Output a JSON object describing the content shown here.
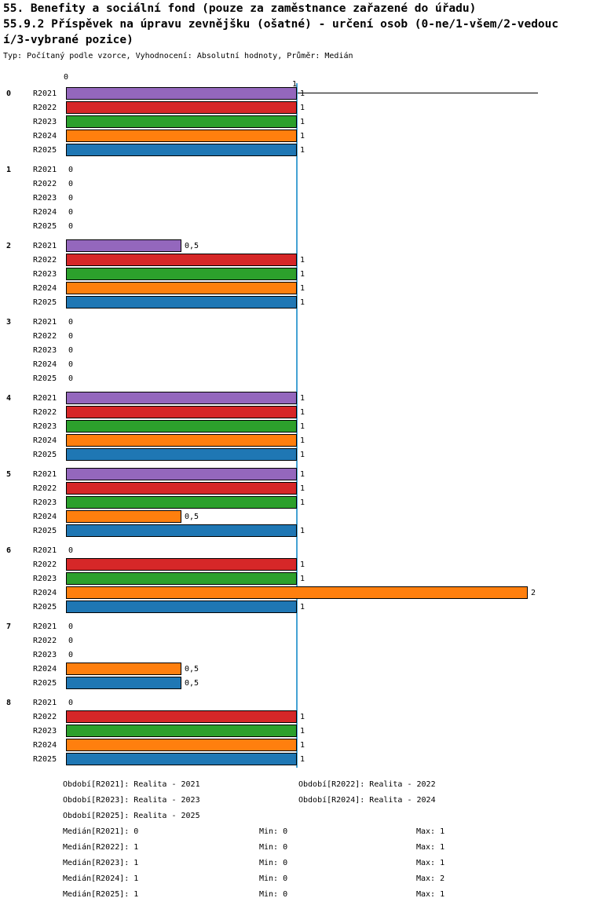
{
  "header": {
    "title_line1": "55. Benefity a sociální fond (pouze za zaměstnance zařazené do úřadu)",
    "title_line2": "55.9.2 Příspěvek na úpravu zevnějšku (ošatné) - určení osob (0-ne/1-všem/2-vedouc",
    "title_line3": "í/3-vybrané pozice)",
    "subtitle": "Typ: Počítaný podle vzorce, Vyhodnocení: Absolutní hodnoty, Průměr: Medián"
  },
  "chart_data": {
    "type": "bar",
    "orientation": "horizontal",
    "title": "55.9.2 Příspěvek na úpravu zevnějšku (ošatné) - určení osob (0-ne/1-všem/2-vedoucí/3-vybrané pozice)",
    "xlim": [
      0,
      2
    ],
    "median_line_value": 1,
    "axis_labels": {
      "origin": "0",
      "median": "1"
    },
    "series_labels": [
      "R2021",
      "R2022",
      "R2023",
      "R2024",
      "R2025"
    ],
    "colors": {
      "R2021": "#9467bd",
      "R2022": "#d62728",
      "R2023": "#2ca02c",
      "R2024": "#ff7f0e",
      "R2025": "#1f77b4",
      "median_line": "#44a2d4",
      "bar_border": "#000000"
    },
    "groups": [
      {
        "label": "0",
        "values": [
          1,
          1,
          1,
          1,
          1
        ]
      },
      {
        "label": "1",
        "values": [
          0,
          0,
          0,
          0,
          0
        ]
      },
      {
        "label": "2",
        "values": [
          0.5,
          1,
          1,
          1,
          1
        ]
      },
      {
        "label": "3",
        "values": [
          0,
          0,
          0,
          0,
          0
        ]
      },
      {
        "label": "4",
        "values": [
          1,
          1,
          1,
          1,
          1
        ]
      },
      {
        "label": "5",
        "values": [
          1,
          1,
          1,
          0.5,
          1
        ]
      },
      {
        "label": "6",
        "values": [
          0,
          1,
          1,
          2,
          1
        ]
      },
      {
        "label": "7",
        "values": [
          0,
          0,
          0,
          0.5,
          0.5
        ]
      },
      {
        "label": "8",
        "values": [
          0,
          1,
          1,
          1,
          1
        ]
      }
    ]
  },
  "footer": {
    "period_rows": [
      [
        "Období[R2021]: Realita - 2021",
        "Období[R2022]: Realita - 2022"
      ],
      [
        "Období[R2023]: Realita - 2023",
        "Období[R2024]: Realita - 2024"
      ],
      [
        "Období[R2025]: Realita - 2025",
        ""
      ]
    ],
    "stat_rows": [
      {
        "median": "Medián[R2021]: 0",
        "min": "Min: 0",
        "max": "Max: 1"
      },
      {
        "median": "Medián[R2022]: 1",
        "min": "Min: 0",
        "max": "Max: 1"
      },
      {
        "median": "Medián[R2023]: 1",
        "min": "Min: 0",
        "max": "Max: 1"
      },
      {
        "median": "Medián[R2024]: 1",
        "min": "Min: 0",
        "max": "Max: 2"
      },
      {
        "median": "Medián[R2025]: 1",
        "min": "Min: 0",
        "max": "Max: 1"
      }
    ]
  }
}
